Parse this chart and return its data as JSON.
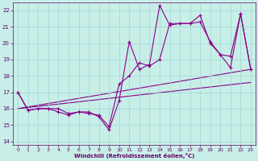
{
  "xlabel": "Windchill (Refroidissement éolien,°C)",
  "xlim": [
    -0.5,
    23.5
  ],
  "ylim": [
    13.8,
    22.5
  ],
  "yticks": [
    14,
    15,
    16,
    17,
    18,
    19,
    20,
    21,
    22
  ],
  "xticks": [
    0,
    1,
    2,
    3,
    4,
    5,
    6,
    7,
    8,
    9,
    10,
    11,
    12,
    13,
    14,
    15,
    16,
    17,
    18,
    19,
    20,
    21,
    22,
    23
  ],
  "bg_color": "#c8eee8",
  "grid_color": "#a0d8d0",
  "line_color": "#880088",
  "line1_x": [
    0,
    1,
    2,
    3,
    4,
    5,
    6,
    7,
    8,
    9,
    10,
    11,
    12,
    13,
    14,
    15,
    16,
    17,
    18,
    19,
    20,
    21,
    22,
    23
  ],
  "line1_y": [
    17.0,
    15.9,
    16.0,
    16.0,
    16.0,
    15.7,
    15.8,
    15.8,
    15.5,
    14.7,
    16.5,
    20.1,
    18.4,
    18.7,
    22.3,
    21.1,
    21.2,
    21.2,
    21.7,
    20.0,
    19.3,
    18.5,
    21.8,
    18.4
  ],
  "line2_x": [
    0,
    1,
    2,
    3,
    4,
    5,
    6,
    7,
    8,
    9,
    10,
    11,
    12,
    13,
    14,
    15,
    16,
    17,
    18,
    19,
    20,
    21,
    22,
    23
  ],
  "line2_y": [
    17.0,
    15.9,
    16.0,
    16.0,
    15.8,
    15.6,
    15.8,
    15.7,
    15.6,
    14.9,
    17.5,
    18.0,
    18.8,
    18.6,
    19.0,
    21.2,
    21.2,
    21.2,
    21.3,
    20.1,
    19.3,
    19.2,
    21.8,
    18.4
  ],
  "line3_x": [
    0,
    23
  ],
  "line3_y": [
    16.0,
    18.4
  ],
  "line4_x": [
    0,
    23
  ],
  "line4_y": [
    16.0,
    17.6
  ]
}
